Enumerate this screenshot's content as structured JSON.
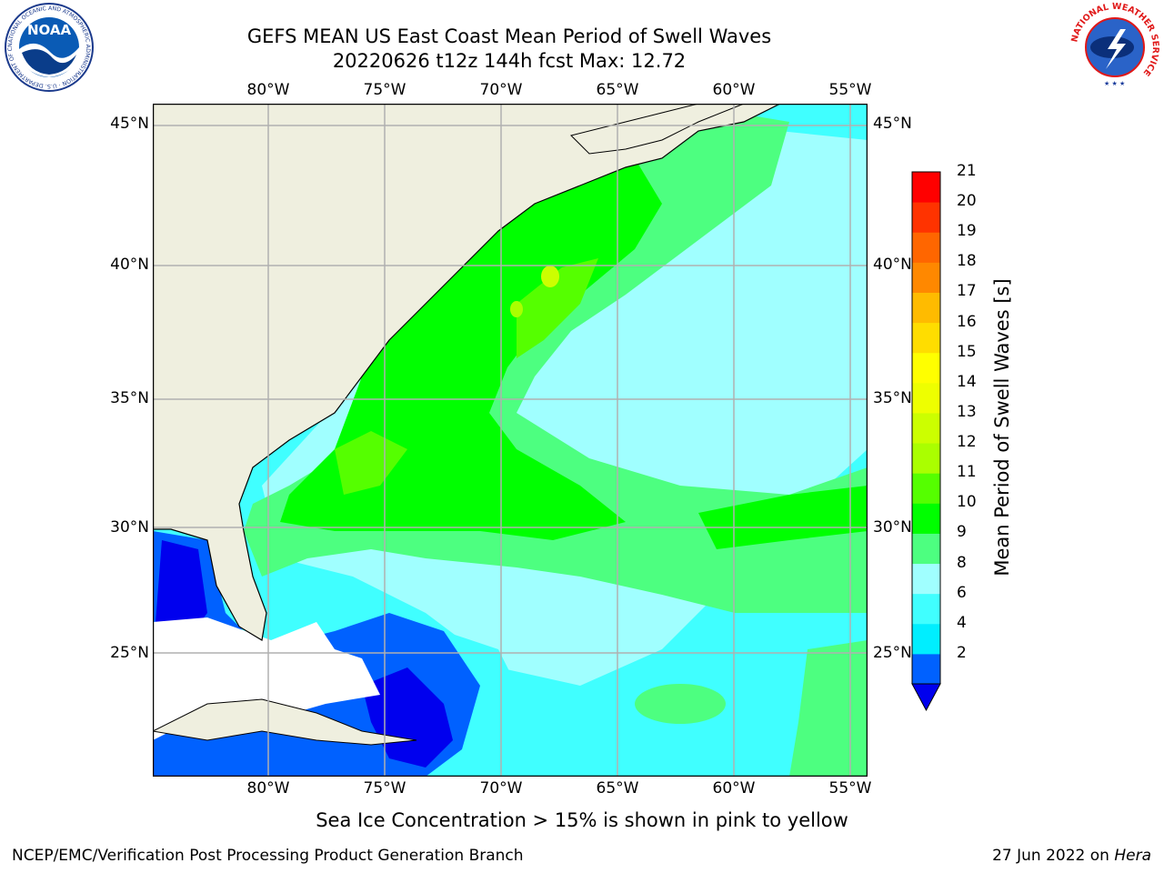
{
  "header": {
    "title_line1": "GEFS MEAN US East Coast Mean Period of Swell Waves",
    "title_line2": "20220626 t12z 144h fcst   Max: 12.72"
  },
  "logos": {
    "noaa": {
      "name": "noaa-logo",
      "text": "NOAA",
      "ring_text": "NATIONAL OCEANIC AND ATMOSPHERIC ADMINISTRATION · U.S. DEPARTMENT OF COMMERCE"
    },
    "nws": {
      "name": "nws-logo",
      "ring_text": "NATIONAL WEATHER SERVICE"
    }
  },
  "map": {
    "lon_labels": [
      "80°W",
      "75°W",
      "70°W",
      "65°W",
      "60°W",
      "55°W"
    ],
    "lat_labels": [
      "45°N",
      "40°N",
      "35°N",
      "30°N",
      "25°N"
    ],
    "land_color": "#efefdf",
    "no_data_color": "#ffffff"
  },
  "colorbar": {
    "label": "Mean Period of Swell Waves [s]",
    "ticks": [
      "21",
      "20",
      "19",
      "18",
      "17",
      "16",
      "15",
      "14",
      "13",
      "12",
      "11",
      "10",
      "9",
      "8",
      "6",
      "4",
      "2"
    ],
    "colors_bottom_to_top": [
      "#0061ff",
      "#00eeff",
      "#40ffff",
      "#a0ffff",
      "#4dff80",
      "#00ff00",
      "#55ff00",
      "#aaff00",
      "#ccff00",
      "#eeff00",
      "#ffff00",
      "#ffdd00",
      "#ffbb00",
      "#ff8800",
      "#ff6600",
      "#ff3300",
      "#ff0000"
    ],
    "under_color": "#0000ee"
  },
  "footer": {
    "ice_note": "Sea Ice Concentration > 15% is shown in pink to yellow",
    "credit": "NCEP/EMC/Verification Post Processing Product Generation Branch",
    "date": "27 Jun 2022 on ",
    "machine": "Hera"
  }
}
